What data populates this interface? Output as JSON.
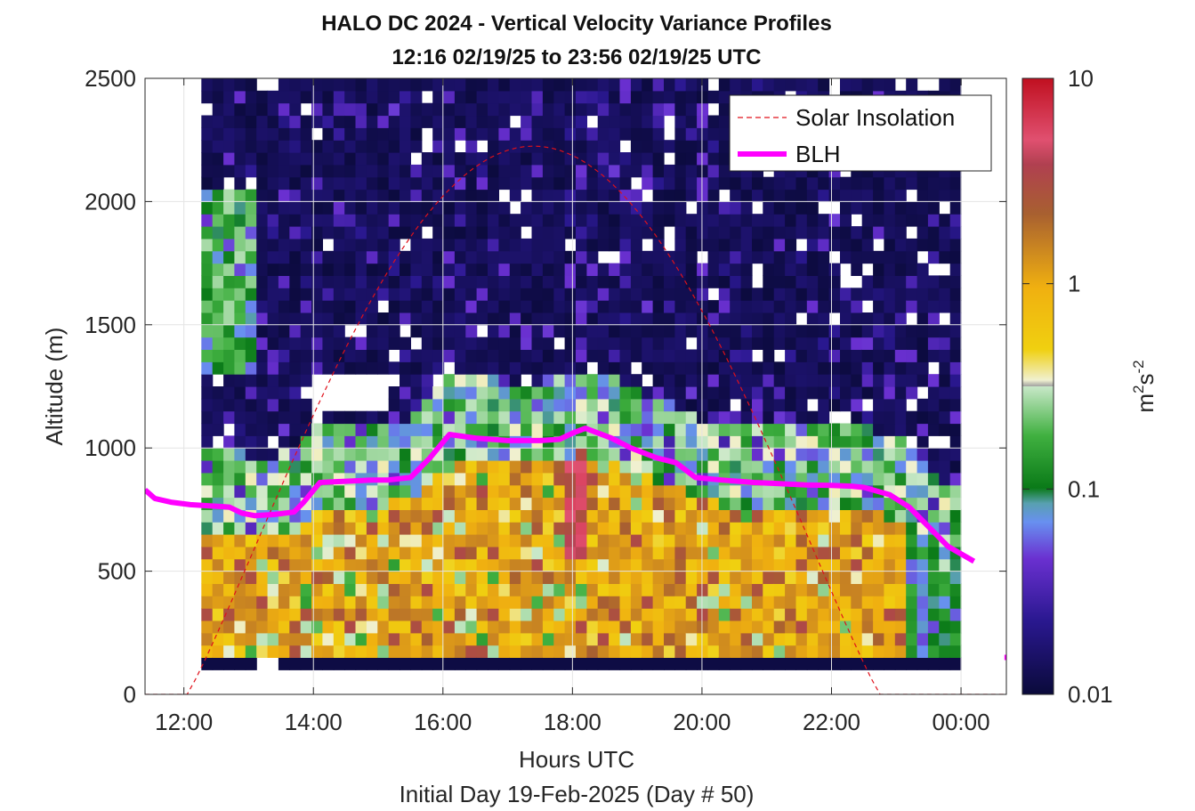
{
  "chart_data": {
    "type": "heatmap",
    "title": "HALO DC 2024 - Vertical Velocity Variance Profiles",
    "subtitle": "12:16 02/19/25 to 23:56 02/19/25  UTC",
    "xlabel": "Hours UTC",
    "xlabel2": "Initial Day 19-Feb-2025 (Day # 50)",
    "ylabel": "Altitude (m)",
    "colorbar_label_base": "m",
    "colorbar_label_sup1": "2",
    "colorbar_label_mid": "s",
    "colorbar_label_sup2": "-2",
    "x_range_hours": [
      11.4,
      24.7
    ],
    "ylim": [
      0,
      2500
    ],
    "x_ticks": [
      {
        "value": 12,
        "label": "12:00"
      },
      {
        "value": 14,
        "label": "14:00"
      },
      {
        "value": 16,
        "label": "16:00"
      },
      {
        "value": 18,
        "label": "18:00"
      },
      {
        "value": 20,
        "label": "20:00"
      },
      {
        "value": 22,
        "label": "22:00"
      },
      {
        "value": 24,
        "label": "00:00"
      }
    ],
    "y_ticks": [
      0,
      500,
      1000,
      1500,
      2000,
      2500
    ],
    "y_tick_labels": [
      "0",
      "500",
      "1000",
      "1500",
      "2000",
      "2500"
    ],
    "grid": true,
    "colorbar": {
      "scale": "log",
      "min": 0.01,
      "max": 10,
      "ticks": [
        0.01,
        0.1,
        1,
        10
      ],
      "tick_labels": [
        "0.01",
        "0.1",
        "1",
        "10"
      ]
    },
    "legend": {
      "placement": "top-right",
      "entries": [
        {
          "label": "Solar Insolation",
          "style": "dashed",
          "color": "#e0101a"
        },
        {
          "label": "BLH",
          "style": "solid",
          "color": "#ff00ff"
        }
      ]
    },
    "series": [
      {
        "name": "BLH",
        "color": "#ff00ff",
        "x": [
          11.4,
          11.55,
          11.8,
          12.1,
          12.4,
          12.7,
          12.9,
          13.1,
          13.4,
          13.7,
          13.85,
          14.1,
          14.5,
          14.9,
          15.15,
          15.5,
          15.8,
          16.1,
          16.5,
          17.0,
          17.5,
          17.8,
          18.0,
          18.2,
          18.6,
          18.9,
          19.3,
          19.6,
          19.9,
          20.3,
          20.8,
          21.2,
          21.6,
          22.0,
          22.3,
          22.5,
          22.9,
          23.2,
          23.5,
          23.8,
          24.2
        ],
        "y": [
          830,
          795,
          780,
          770,
          765,
          760,
          735,
          725,
          730,
          740,
          780,
          860,
          865,
          870,
          870,
          880,
          960,
          1055,
          1040,
          1030,
          1030,
          1035,
          1060,
          1080,
          1040,
          1000,
          960,
          940,
          880,
          870,
          860,
          855,
          850,
          848,
          845,
          840,
          810,
          760,
          680,
          600,
          540
        ]
      },
      {
        "name": "BLH (isolated point)",
        "color": "#ff00ff",
        "x": [
          24.67,
          24.75
        ],
        "y": [
          150,
          150
        ]
      },
      {
        "name": "Solar Insolation",
        "color": "#e0101a",
        "sunrise_hour": 12.05,
        "sunset_hour": 22.75,
        "peak_hour": 17.4,
        "peak_altitude_equiv": 2225,
        "floor_altitude": 0
      }
    ],
    "heatmap_cells": {
      "note": "w-variance values (m^2 s^-2) binned by hour and altitude",
      "bin_width_hours": 0.17,
      "bin_height_m": 50
    }
  }
}
